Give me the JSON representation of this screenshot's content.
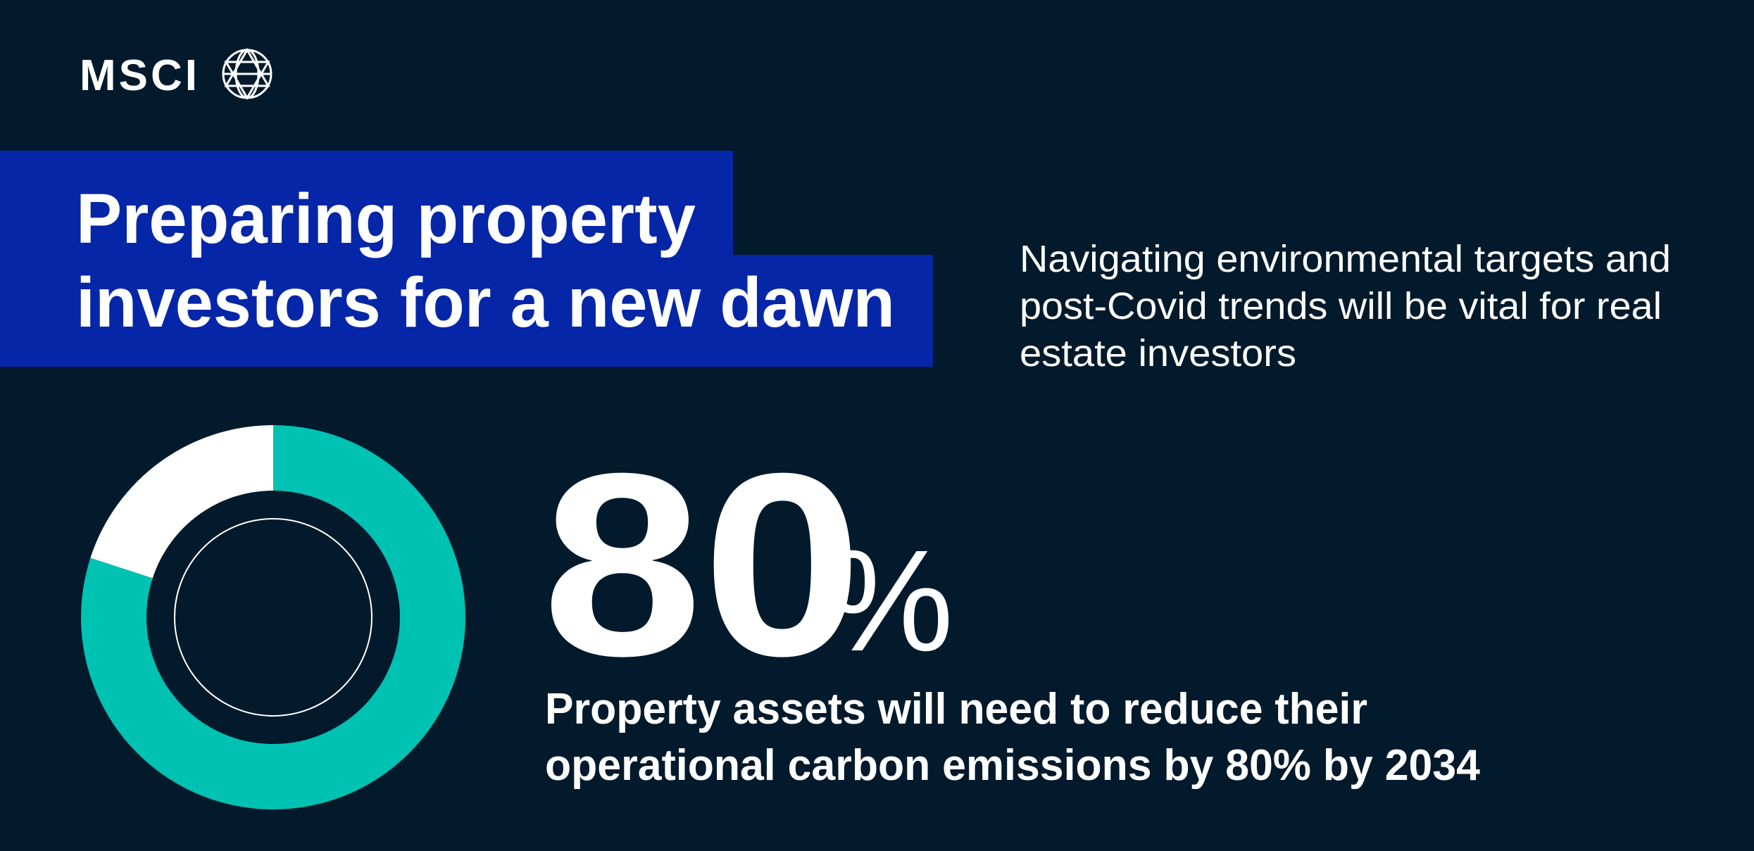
{
  "logo": {
    "text": "MSCI"
  },
  "header": {
    "title_lines": [
      "Preparing property",
      "investors for a new dawn"
    ]
  },
  "subtitle": {
    "lines": [
      "Navigating environmental targets and",
      "post-Covid trends will be vital for real",
      "estate investors"
    ]
  },
  "stat": {
    "value": 80,
    "unit": "%"
  },
  "body": {
    "lines": [
      "Property assets will need to reduce their",
      "operational carbon emissions by 80% by 2034"
    ]
  }
}
